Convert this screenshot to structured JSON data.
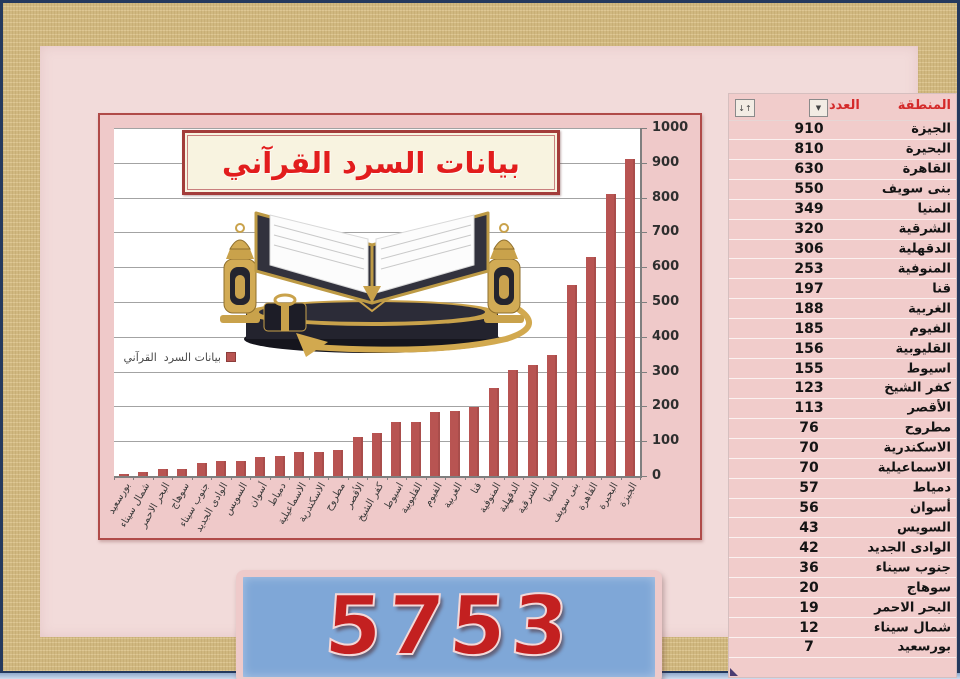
{
  "chart": {
    "title": "بيانات السرد القرآني",
    "legend_label": "بيانات السرد  القرآني"
  },
  "chart_data": {
    "type": "bar",
    "title": "بيانات السرد القرآني",
    "legend": [
      "بيانات السرد القرآني"
    ],
    "legend_position": "middle-left",
    "axis_side": "right",
    "grid": true,
    "bar_color": "#b85452",
    "ylim": [
      0,
      1000
    ],
    "y_tick_step": 100,
    "y_ticks": [
      0,
      100,
      200,
      300,
      400,
      500,
      600,
      700,
      800,
      900,
      1000
    ],
    "categories": [
      "بورسعيد",
      "شمال سيناء",
      "البحر الاحمر",
      "سوهاج",
      "جنوب سيناء",
      "الوادى الجديد",
      "السويس",
      "أسوان",
      "دمياط",
      "الاسماعيلية",
      "الاسكندرية",
      "مطروح",
      "الأقصر",
      "كفر الشيخ",
      "اسيوط",
      "القليوبية",
      "الفيوم",
      "الغربية",
      "قنا",
      "المنوفية",
      "الدقهلية",
      "الشرقية",
      "المنيا",
      "بنى سويف",
      "القاهرة",
      "البحيرة",
      "الجيزة"
    ],
    "values": [
      7,
      12,
      19,
      20,
      36,
      42,
      43,
      56,
      57,
      70,
      70,
      76,
      113,
      123,
      155,
      156,
      185,
      188,
      197,
      253,
      306,
      320,
      349,
      550,
      630,
      810,
      910
    ]
  },
  "table": {
    "header": {
      "region": "المنطقة",
      "count": "العدد"
    },
    "icons": {
      "filter": "▼",
      "sort": "↓↑"
    },
    "rows": [
      {
        "name": "الجيزة",
        "value": 910
      },
      {
        "name": "البحيرة",
        "value": 810
      },
      {
        "name": "القاهرة",
        "value": 630
      },
      {
        "name": "بنى سويف",
        "value": 550
      },
      {
        "name": "المنيا",
        "value": 349
      },
      {
        "name": "الشرقية",
        "value": 320
      },
      {
        "name": "الدقهلية",
        "value": 306
      },
      {
        "name": "المنوفية",
        "value": 253
      },
      {
        "name": "قنا",
        "value": 197
      },
      {
        "name": "الغربية",
        "value": 188
      },
      {
        "name": "الفيوم",
        "value": 185
      },
      {
        "name": "القليوبية",
        "value": 156
      },
      {
        "name": "اسيوط",
        "value": 155
      },
      {
        "name": "كفر الشيخ",
        "value": 123
      },
      {
        "name": "الأقصر",
        "value": 113
      },
      {
        "name": "مطروح",
        "value": 76
      },
      {
        "name": "الاسكندرية",
        "value": 70
      },
      {
        "name": "الاسماعيلية",
        "value": 70
      },
      {
        "name": "دمياط",
        "value": 57
      },
      {
        "name": "أسوان",
        "value": 56
      },
      {
        "name": "السويس",
        "value": 43
      },
      {
        "name": "الوادى الجديد",
        "value": 42
      },
      {
        "name": "جنوب سيناء",
        "value": 36
      },
      {
        "name": "سوهاج",
        "value": 20
      },
      {
        "name": "البحر الاحمر",
        "value": 19
      },
      {
        "name": "شمال سيناء",
        "value": 12
      },
      {
        "name": "بورسعيد",
        "value": 7
      }
    ]
  },
  "total": {
    "value": "5753"
  },
  "colors": {
    "bar": "#b85452",
    "accent_red": "#e21d1d",
    "panel_blue": "#7fa7d7",
    "page_pink": "#f2dbda",
    "chart_pink": "#efc9c9",
    "frame_gold": "#d9bf85",
    "frame_navy": "#24395e"
  }
}
